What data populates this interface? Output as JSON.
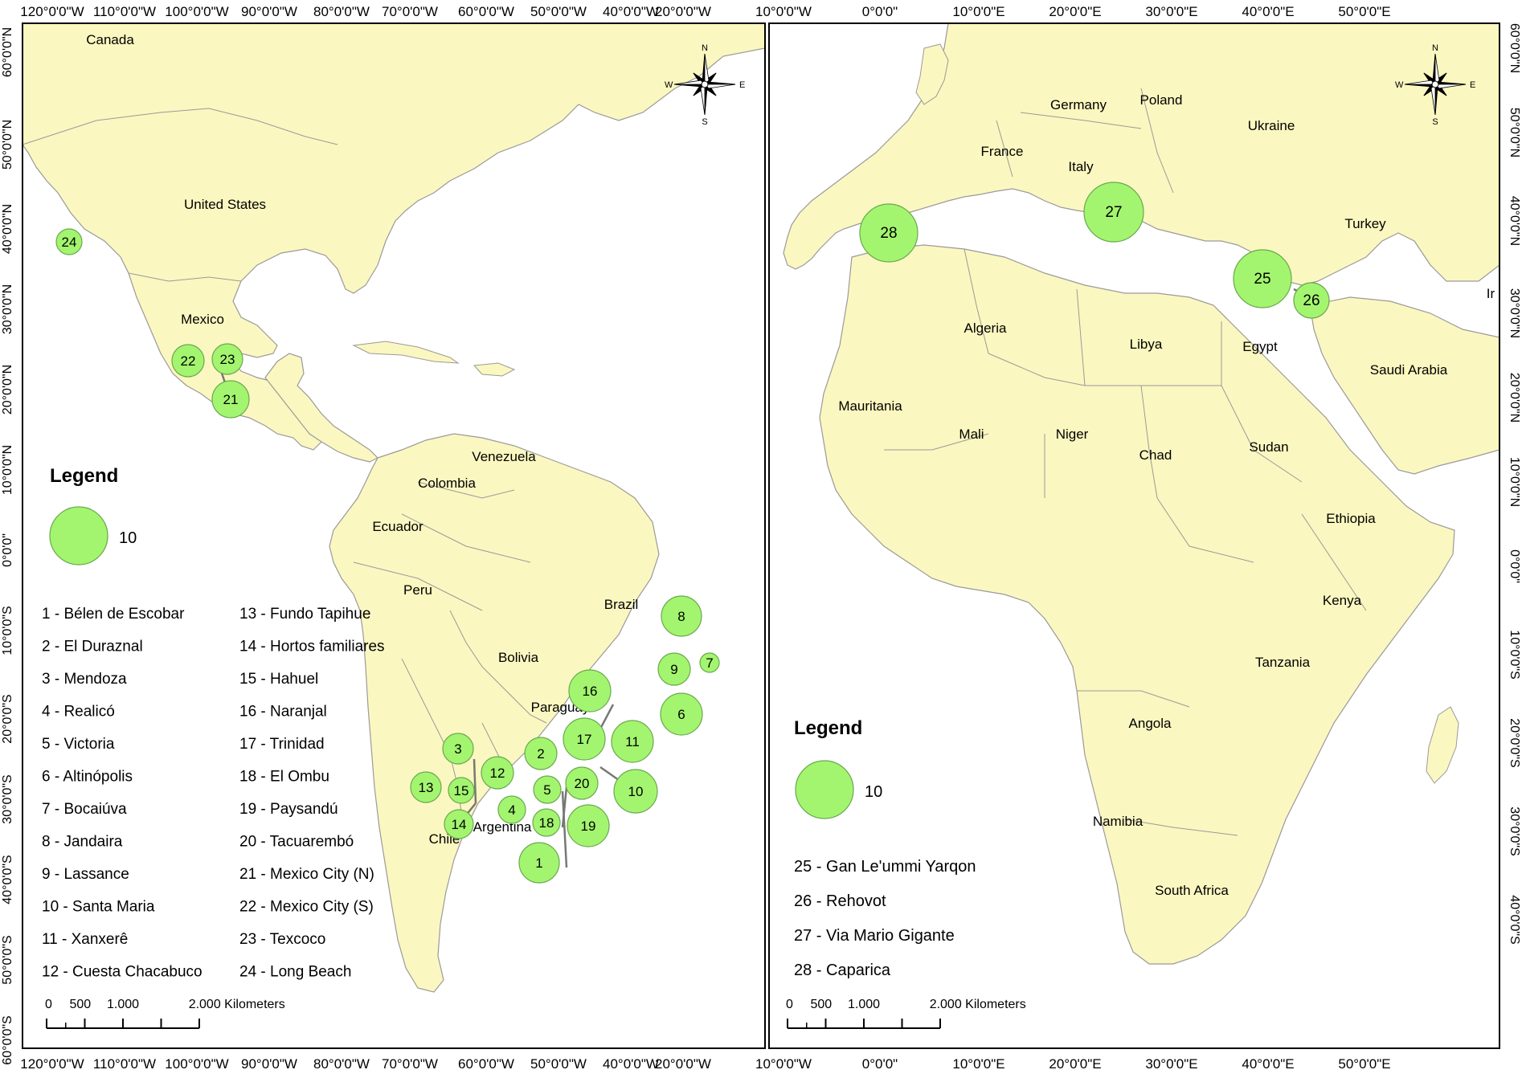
{
  "left_map": {
    "top_ticks": [
      "120°0'0\"W",
      "110°0'0\"W",
      "100°0'0\"W",
      "90°0'0\"W",
      "80°0'0\"W",
      "70°0'0\"W",
      "60°0'0\"W",
      "50°0'0\"W",
      "40°0'0\"W"
    ],
    "bottom_ticks": [
      "120°0'0\"W",
      "110°0'0\"W",
      "100°0'0\"W",
      "90°0'0\"W",
      "80°0'0\"W",
      "70°0'0\"W",
      "60°0'0\"W",
      "50°0'0\"W",
      "40°0'0\"W"
    ],
    "left_ticks": [
      "60°0'0\"N",
      "50°0'0\"N",
      "40°0'0\"N",
      "30°0'0\"N",
      "20°0'0\"N",
      "10°0'0\"N",
      "0°0'0\"",
      "10°0'0\"S",
      "20°0'0\"S",
      "30°0'0\"S",
      "40°0'0\"S",
      "50°0'0\"S",
      "60°0'0\"S"
    ],
    "countries": [
      "Canada",
      "United States",
      "Mexico",
      "Venezuela",
      "Colombia",
      "Ecuador",
      "Peru",
      "Brazil",
      "Bolivia",
      "Paraguay",
      "Argentina",
      "Chile"
    ],
    "legend_title": "Legend",
    "legend_size_label": "10",
    "sites": [
      "1 - Bélen de Escobar",
      "2 - El Duraznal",
      "3 - Mendoza",
      "4 - Realicó",
      "5 - Victoria",
      "6 - Altinópolis",
      "7 - Bocaiúva",
      "8 - Jandaira",
      "9 - Lassance",
      "10 - Santa Maria",
      "11 - Xanxerê",
      "12 - Cuesta Chacabuco",
      "13 - Fundo Tapihue",
      "14 - Hortos familiares",
      "15 - Hahuel",
      "16 - Naranjal",
      "17 - Trinidad",
      "18 - El Ombu",
      "19 - Paysandú",
      "20 - Tacuarembó",
      "21 - Mexico City (N)",
      "22 - Mexico City (S)",
      "23 - Texcoco",
      "24 - Long Beach"
    ],
    "markers": [
      "1",
      "2",
      "3",
      "4",
      "5",
      "6",
      "7",
      "8",
      "9",
      "10",
      "11",
      "12",
      "13",
      "14",
      "15",
      "16",
      "17",
      "18",
      "19",
      "20",
      "21",
      "22",
      "23",
      "24"
    ],
    "scale_labels": [
      "0",
      "500",
      "1.000",
      "2.000 Kilometers"
    ],
    "compass": {
      "n": "N",
      "s": "S",
      "e": "E",
      "w": "W"
    }
  },
  "right_map": {
    "top_ticks": [
      "20°0'0\"W",
      "10°0'0\"W",
      "0°0'0\"",
      "10°0'0\"E",
      "20°0'0\"E",
      "30°0'0\"E",
      "40°0'0\"E",
      "50°0'0\"E"
    ],
    "bottom_ticks": [
      "20°0'0\"W",
      "10°0'0\"W",
      "0°0'0\"",
      "10°0'0\"E",
      "20°0'0\"E",
      "30°0'0\"E",
      "40°0'0\"E",
      "50°0'0\"E"
    ],
    "right_ticks": [
      "60°0'0\"N",
      "50°0'0\"N",
      "40°0'0\"N",
      "30°0'0\"N",
      "20°0'0\"N",
      "10°0'0\"N",
      "0°0'0\"",
      "10°0'0\"S",
      "20°0'0\"S",
      "30°0'0\"S",
      "40°0'0\"S"
    ],
    "countries": [
      "Germany",
      "Poland",
      "Ukraine",
      "France",
      "Italy",
      "Turkey",
      "Algeria",
      "Libya",
      "Egypt",
      "Saudi Arabia",
      "Mauritania",
      "Mali",
      "Niger",
      "Chad",
      "Sudan",
      "Ethiopia",
      "Kenya",
      "Tanzania",
      "Angola",
      "Namibia",
      "South Africa",
      "Ir"
    ],
    "legend_title": "Legend",
    "legend_size_label": "10",
    "sites": [
      "25 - Gan Le'ummi Yarqon",
      "26 - Rehovot",
      "27 - Via Mario Gigante",
      "28 - Caparica"
    ],
    "markers": [
      "25",
      "26",
      "27",
      "28"
    ],
    "scale_labels": [
      "0",
      "500",
      "1.000",
      "2.000 Kilometers"
    ],
    "compass": {
      "n": "N",
      "s": "S",
      "e": "E",
      "w": "W"
    }
  },
  "colors": {
    "land": "#fbf7c0",
    "border": "#9a9a9a",
    "marker_fill": "#a3f56f",
    "marker_stroke": "#6aa84f",
    "frame": "#000000",
    "text": "#000000"
  }
}
